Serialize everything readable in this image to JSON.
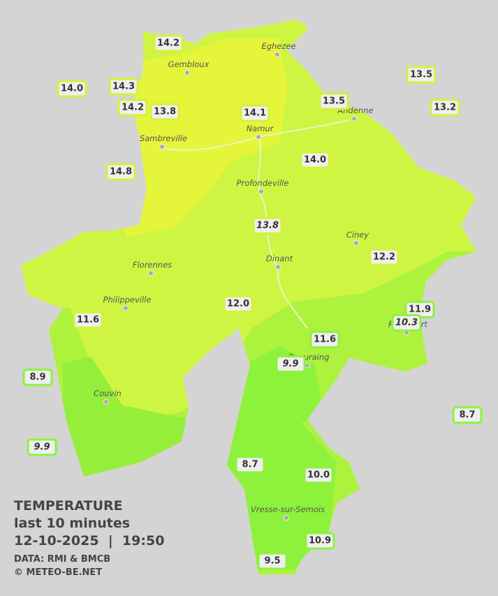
{
  "legend": {
    "title": "TEMPERATURE",
    "subtitle": "last 10 minutes",
    "datetime": "12-10-2025  |  19:50",
    "source": "DATA: RMI & BMCB",
    "copyright": "© METEO-BE.NET"
  },
  "towns": [
    "Eghezee",
    "Gembloux",
    "Andenne",
    "Namur",
    "Sambreville",
    "Profondeville",
    "Ciney",
    "Dinant",
    "Florennes",
    "Philippeville",
    "Rochefort",
    "Beauraing",
    "Couvin",
    "Vresse-sur-Semois"
  ],
  "stations": [
    "14.2",
    "14.0",
    "14.3",
    "14.2",
    "13.8",
    "14.1",
    "13.5",
    "13.5",
    "13.2",
    "14.8",
    "14.0",
    "13.8",
    "12.2",
    "12.0",
    "11.9",
    "10.3",
    "11.6",
    "11.6",
    "9.9",
    "8.9",
    "8.7",
    "9.9",
    "8.7",
    "10.0",
    "10.9",
    "9.5"
  ]
}
